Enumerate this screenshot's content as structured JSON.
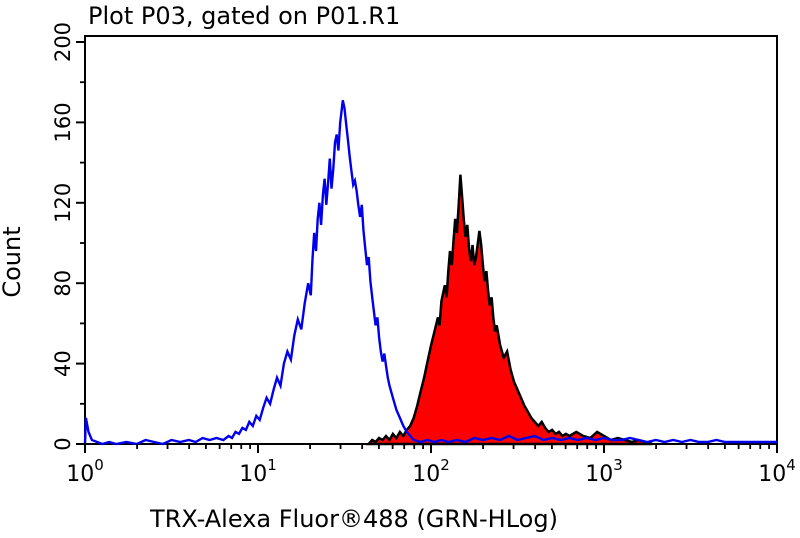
{
  "figure": {
    "background": "#ffffff"
  },
  "chart_data": {
    "type": "line",
    "subtype": "flow-cytometry-histogram-overlay",
    "title": "Plot P03, gated on P01.R1",
    "xlabel": "TRX-Alexa Fluor®488 (GRN-HLog)",
    "ylabel": "Count",
    "x_scale": "log10",
    "x_log10_range": [
      0,
      4
    ],
    "ylim": [
      0,
      200
    ],
    "y_ticks": [
      0,
      40,
      80,
      120,
      160,
      200
    ],
    "y_minor_step": 20,
    "x_major_ticks_exponents": [
      0,
      1,
      2,
      3,
      4
    ],
    "x_tick_base": "10",
    "grid": false,
    "legend": null,
    "axis_color": "#000000",
    "series": [
      {
        "name": "filled-red-histogram",
        "color": "#000000",
        "fill": "#ff0000",
        "points": [
          [
            1.64,
            0
          ],
          [
            1.66,
            2
          ],
          [
            1.68,
            1
          ],
          [
            1.7,
            3
          ],
          [
            1.72,
            2
          ],
          [
            1.74,
            4
          ],
          [
            1.76,
            2
          ],
          [
            1.78,
            5
          ],
          [
            1.8,
            3
          ],
          [
            1.82,
            6
          ],
          [
            1.84,
            4
          ],
          [
            1.86,
            7
          ],
          [
            1.88,
            9
          ],
          [
            1.9,
            13
          ],
          [
            1.92,
            19
          ],
          [
            1.94,
            26
          ],
          [
            1.96,
            33
          ],
          [
            1.98,
            41
          ],
          [
            2.0,
            49
          ],
          [
            2.02,
            56
          ],
          [
            2.04,
            63
          ],
          [
            2.05,
            59
          ],
          [
            2.06,
            71
          ],
          [
            2.08,
            79
          ],
          [
            2.09,
            73
          ],
          [
            2.1,
            86
          ],
          [
            2.11,
            96
          ],
          [
            2.12,
            89
          ],
          [
            2.13,
            101
          ],
          [
            2.14,
            112
          ],
          [
            2.15,
            105
          ],
          [
            2.16,
            119
          ],
          [
            2.17,
            134
          ],
          [
            2.18,
            123
          ],
          [
            2.19,
            111
          ],
          [
            2.2,
            103
          ],
          [
            2.21,
            109
          ],
          [
            2.22,
            97
          ],
          [
            2.23,
            91
          ],
          [
            2.24,
            99
          ],
          [
            2.25,
            89
          ],
          [
            2.26,
            93
          ],
          [
            2.28,
            106
          ],
          [
            2.29,
            99
          ],
          [
            2.3,
            89
          ],
          [
            2.31,
            81
          ],
          [
            2.32,
            86
          ],
          [
            2.33,
            76
          ],
          [
            2.34,
            69
          ],
          [
            2.35,
            73
          ],
          [
            2.36,
            63
          ],
          [
            2.37,
            56
          ],
          [
            2.38,
            59
          ],
          [
            2.4,
            49
          ],
          [
            2.42,
            43
          ],
          [
            2.44,
            46
          ],
          [
            2.46,
            37
          ],
          [
            2.48,
            31
          ],
          [
            2.5,
            27
          ],
          [
            2.52,
            23
          ],
          [
            2.54,
            19
          ],
          [
            2.56,
            16
          ],
          [
            2.58,
            13
          ],
          [
            2.6,
            11
          ],
          [
            2.62,
            9
          ],
          [
            2.64,
            11
          ],
          [
            2.66,
            8
          ],
          [
            2.68,
            6
          ],
          [
            2.7,
            7
          ],
          [
            2.72,
            5
          ],
          [
            2.74,
            6
          ],
          [
            2.76,
            4
          ],
          [
            2.78,
            5
          ],
          [
            2.8,
            4
          ],
          [
            2.84,
            6
          ],
          [
            2.88,
            4
          ],
          [
            2.92,
            3
          ],
          [
            2.96,
            6
          ],
          [
            3.0,
            4
          ],
          [
            3.04,
            2
          ],
          [
            3.08,
            3
          ],
          [
            3.12,
            2
          ],
          [
            3.16,
            1
          ],
          [
            3.2,
            2
          ],
          [
            3.24,
            1
          ],
          [
            3.28,
            0
          ]
        ]
      },
      {
        "name": "open-blue-histogram",
        "color": "#0000ee",
        "fill": "none",
        "points": [
          [
            0.0,
            0
          ],
          [
            0.005,
            13
          ],
          [
            0.02,
            6
          ],
          [
            0.04,
            2
          ],
          [
            0.07,
            1
          ],
          [
            0.1,
            0
          ],
          [
            0.14,
            1
          ],
          [
            0.18,
            0
          ],
          [
            0.24,
            1
          ],
          [
            0.3,
            0
          ],
          [
            0.35,
            2
          ],
          [
            0.4,
            1
          ],
          [
            0.45,
            0
          ],
          [
            0.5,
            2
          ],
          [
            0.55,
            1
          ],
          [
            0.6,
            2
          ],
          [
            0.64,
            1
          ],
          [
            0.68,
            3
          ],
          [
            0.72,
            2
          ],
          [
            0.76,
            3
          ],
          [
            0.8,
            2
          ],
          [
            0.83,
            4
          ],
          [
            0.85,
            3
          ],
          [
            0.87,
            6
          ],
          [
            0.89,
            5
          ],
          [
            0.91,
            8
          ],
          [
            0.93,
            7
          ],
          [
            0.95,
            11
          ],
          [
            0.97,
            9
          ],
          [
            0.99,
            14
          ],
          [
            1.01,
            12
          ],
          [
            1.03,
            18
          ],
          [
            1.05,
            23
          ],
          [
            1.07,
            20
          ],
          [
            1.09,
            27
          ],
          [
            1.11,
            33
          ],
          [
            1.13,
            29
          ],
          [
            1.15,
            40
          ],
          [
            1.17,
            46
          ],
          [
            1.19,
            42
          ],
          [
            1.21,
            54
          ],
          [
            1.23,
            62
          ],
          [
            1.25,
            57
          ],
          [
            1.27,
            70
          ],
          [
            1.29,
            80
          ],
          [
            1.305,
            74
          ],
          [
            1.315,
            92
          ],
          [
            1.325,
            105
          ],
          [
            1.335,
            96
          ],
          [
            1.345,
            112
          ],
          [
            1.355,
            120
          ],
          [
            1.365,
            109
          ],
          [
            1.375,
            124
          ],
          [
            1.385,
            132
          ],
          [
            1.395,
            119
          ],
          [
            1.405,
            130
          ],
          [
            1.415,
            142
          ],
          [
            1.425,
            127
          ],
          [
            1.435,
            137
          ],
          [
            1.445,
            150
          ],
          [
            1.455,
            154
          ],
          [
            1.465,
            146
          ],
          [
            1.475,
            160
          ],
          [
            1.485,
            167
          ],
          [
            1.49,
            171
          ],
          [
            1.5,
            167
          ],
          [
            1.51,
            159
          ],
          [
            1.52,
            151
          ],
          [
            1.53,
            143
          ],
          [
            1.54,
            136
          ],
          [
            1.55,
            129
          ],
          [
            1.56,
            131
          ],
          [
            1.57,
            126
          ],
          [
            1.58,
            119
          ],
          [
            1.59,
            113
          ],
          [
            1.6,
            119
          ],
          [
            1.61,
            106
          ],
          [
            1.62,
            97
          ],
          [
            1.63,
            89
          ],
          [
            1.64,
            93
          ],
          [
            1.65,
            81
          ],
          [
            1.66,
            73
          ],
          [
            1.67,
            66
          ],
          [
            1.68,
            59
          ],
          [
            1.69,
            63
          ],
          [
            1.7,
            53
          ],
          [
            1.71,
            46
          ],
          [
            1.72,
            41
          ],
          [
            1.73,
            45
          ],
          [
            1.74,
            39
          ],
          [
            1.75,
            33
          ],
          [
            1.76,
            29
          ],
          [
            1.78,
            23
          ],
          [
            1.8,
            17
          ],
          [
            1.82,
            13
          ],
          [
            1.84,
            9
          ],
          [
            1.86,
            6
          ],
          [
            1.88,
            4
          ],
          [
            1.9,
            2
          ],
          [
            1.94,
            1
          ],
          [
            1.98,
            2
          ],
          [
            2.02,
            1
          ],
          [
            2.06,
            2
          ],
          [
            2.1,
            1
          ],
          [
            2.15,
            2
          ],
          [
            2.2,
            1
          ],
          [
            2.25,
            3
          ],
          [
            2.3,
            2
          ],
          [
            2.35,
            3
          ],
          [
            2.4,
            2
          ],
          [
            2.45,
            4
          ],
          [
            2.5,
            2
          ],
          [
            2.55,
            3
          ],
          [
            2.6,
            4
          ],
          [
            2.65,
            2
          ],
          [
            2.7,
            3
          ],
          [
            2.75,
            2
          ],
          [
            2.8,
            3
          ],
          [
            2.85,
            2
          ],
          [
            2.9,
            3
          ],
          [
            2.95,
            2
          ],
          [
            3.0,
            3
          ],
          [
            3.05,
            2
          ],
          [
            3.1,
            2
          ],
          [
            3.15,
            3
          ],
          [
            3.2,
            2
          ],
          [
            3.25,
            1
          ],
          [
            3.3,
            2
          ],
          [
            3.35,
            1
          ],
          [
            3.4,
            2
          ],
          [
            3.45,
            1
          ],
          [
            3.5,
            2
          ],
          [
            3.55,
            1
          ],
          [
            3.6,
            1
          ],
          [
            3.65,
            2
          ],
          [
            3.7,
            1
          ],
          [
            3.75,
            1
          ],
          [
            3.8,
            1
          ],
          [
            3.85,
            1
          ],
          [
            3.9,
            1
          ],
          [
            3.95,
            1
          ],
          [
            4.0,
            1
          ]
        ]
      }
    ]
  }
}
